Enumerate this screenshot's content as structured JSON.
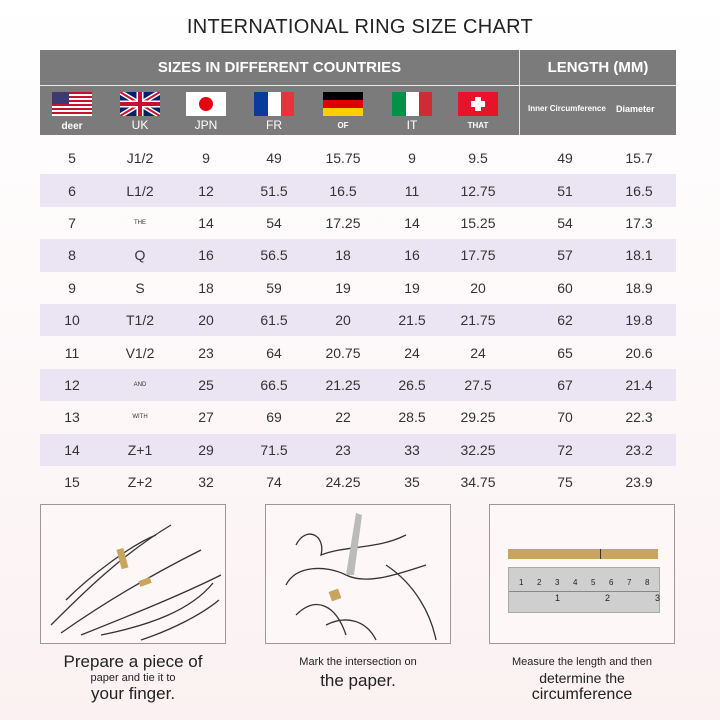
{
  "title": "INTERNATIONAL RING SIZE CHART",
  "header": {
    "countries_label": "SIZES IN DIFFERENT COUNTRIES",
    "length_label": "LENGTH (MM)",
    "columns": [
      {
        "flag": "usa-flag-icon",
        "label": "deer"
      },
      {
        "flag": "uk-flag-icon",
        "label": "UK"
      },
      {
        "flag": "japan-flag-icon",
        "label": "JPN"
      },
      {
        "flag": "france-flag-icon",
        "label": "FR"
      },
      {
        "flag": "germany-flag-icon",
        "label": "OF"
      },
      {
        "flag": "italy-flag-icon",
        "label": "IT"
      },
      {
        "flag": "switzerland-flag-icon",
        "label": "THAT"
      }
    ],
    "inner_circumference": "Inner Circumference",
    "diameter": "Diameter"
  },
  "rows": [
    [
      "5",
      "J1/2",
      "9",
      "49",
      "15.75",
      "9",
      "9.5",
      "49",
      "15.7"
    ],
    [
      "6",
      "L1/2",
      "12",
      "51.5",
      "16.5",
      "11",
      "12.75",
      "51",
      "16.5"
    ],
    [
      "7",
      "THE",
      "14",
      "54",
      "17.25",
      "14",
      "15.25",
      "54",
      "17.3"
    ],
    [
      "8",
      "Q",
      "16",
      "56.5",
      "18",
      "16",
      "17.75",
      "57",
      "18.1"
    ],
    [
      "9",
      "S",
      "18",
      "59",
      "19",
      "19",
      "20",
      "60",
      "18.9"
    ],
    [
      "10",
      "T1/2",
      "20",
      "61.5",
      "20",
      "21.5",
      "21.75",
      "62",
      "19.8"
    ],
    [
      "11",
      "V1/2",
      "23",
      "64",
      "20.75",
      "24",
      "24",
      "65",
      "20.6"
    ],
    [
      "12",
      "AND",
      "25",
      "66.5",
      "21.25",
      "26.5",
      "27.5",
      "67",
      "21.4"
    ],
    [
      "13",
      "WITH",
      "27",
      "69",
      "22",
      "28.5",
      "29.25",
      "70",
      "22.3"
    ],
    [
      "14",
      "Z+1",
      "29",
      "71.5",
      "23",
      "33",
      "32.25",
      "72",
      "23.2"
    ],
    [
      "15",
      "Z+2",
      "32",
      "74",
      "24.25",
      "35",
      "34.75",
      "75",
      "23.9"
    ]
  ],
  "steps": [
    {
      "line1": "Prepare a piece of",
      "line2": "paper and tie it to",
      "line3": "your finger."
    },
    {
      "line1": "Mark the intersection on",
      "line2": "the paper."
    },
    {
      "line1": "Measure the length and then",
      "line2": "determine the",
      "line3": "circumference"
    }
  ],
  "ruler": {
    "cm_ticks": [
      "1",
      "2",
      "3",
      "4",
      "5",
      "6",
      "7",
      "8"
    ],
    "inch_ticks": [
      "1",
      "2",
      "3"
    ]
  },
  "colors": {
    "header": "#7b7b7b",
    "alt_row": "#ebe4f3",
    "paper_strip": "#c9a45c"
  }
}
